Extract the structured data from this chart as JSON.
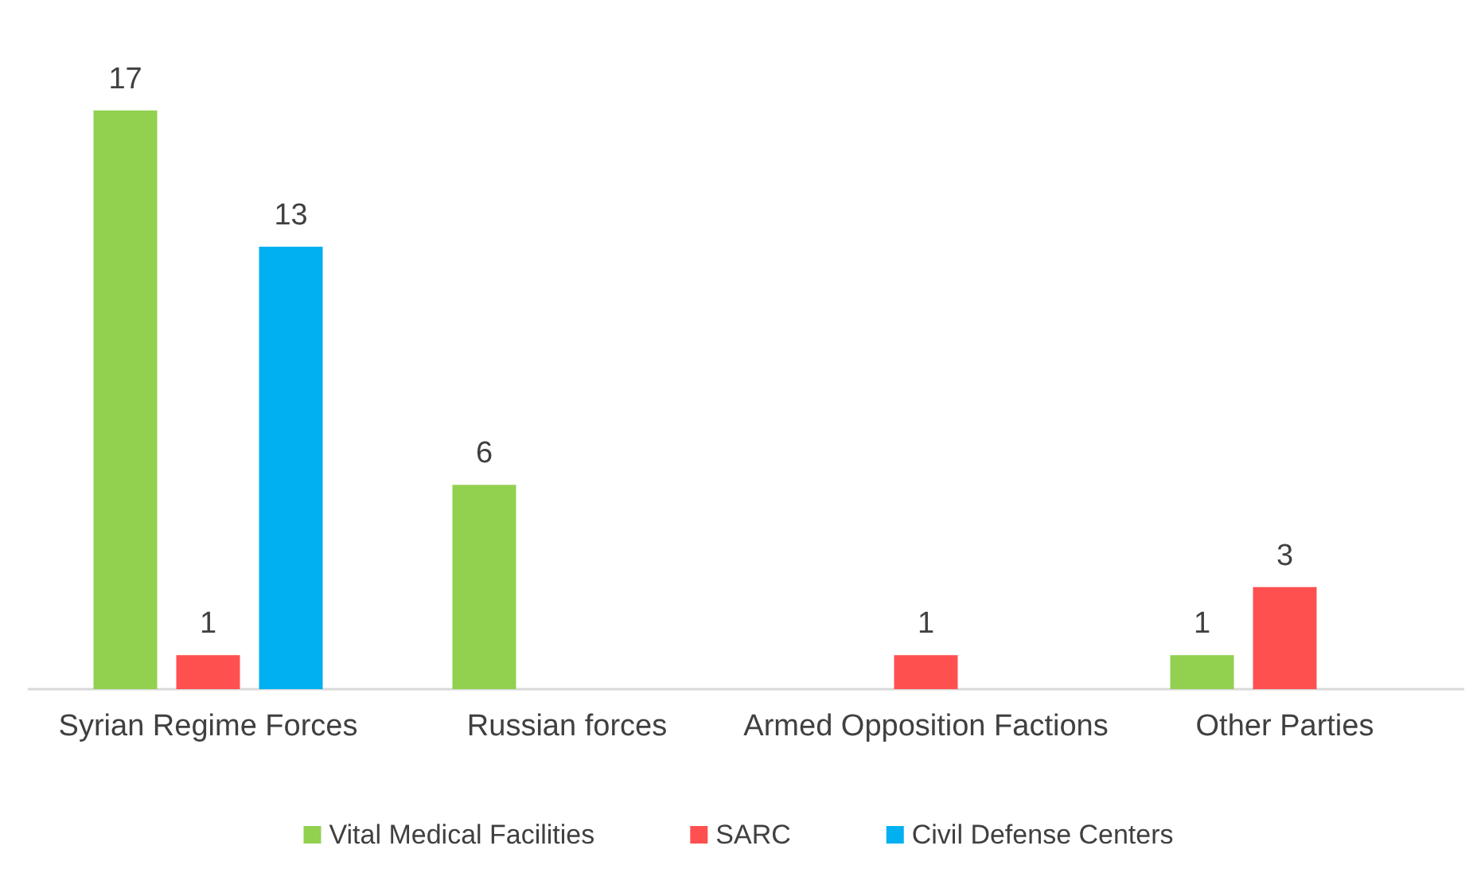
{
  "chart_data": {
    "type": "bar",
    "categories": [
      "Syrian Regime Forces",
      "Russian forces",
      "Armed Opposition Factions",
      "Other Parties"
    ],
    "series": [
      {
        "name": "Vital Medical Facilities",
        "color": "#92d050",
        "values": [
          17,
          6,
          null,
          1
        ]
      },
      {
        "name": "SARC",
        "color": "#ff5050",
        "values": [
          1,
          null,
          1,
          3
        ]
      },
      {
        "name": "Civil Defense Centers",
        "color": "#00b0f0",
        "values": [
          13,
          null,
          null,
          null
        ]
      }
    ],
    "data_labels": true,
    "legend": "bottom"
  }
}
